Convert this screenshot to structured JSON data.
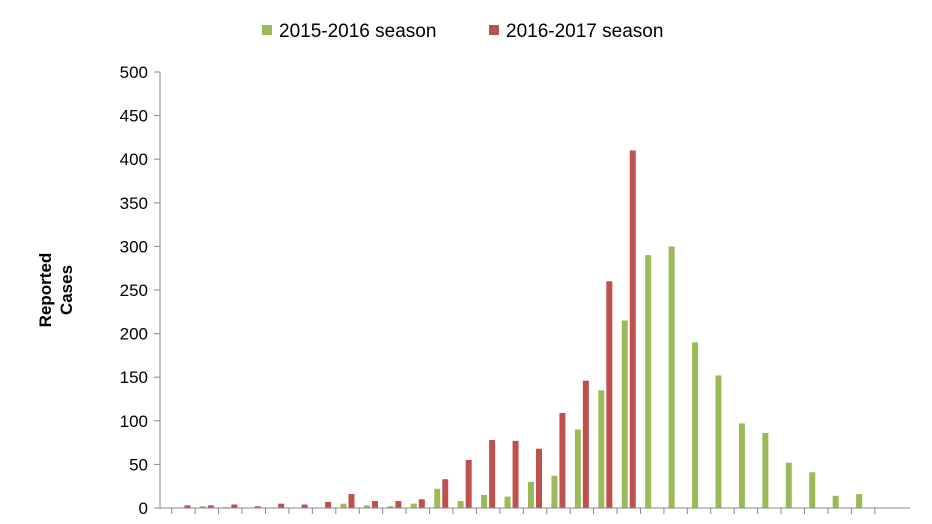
{
  "chart_data": {
    "type": "bar",
    "ylabel_lines": [
      "Reported",
      "Cases"
    ],
    "ylim": [
      0,
      500
    ],
    "yticks": [
      0,
      50,
      100,
      150,
      200,
      250,
      300,
      350,
      400,
      450,
      500
    ],
    "grid": false,
    "legend_position": "top",
    "series": [
      {
        "name": "2015-2016 season",
        "color": "#9bbb59",
        "values": [
          0,
          2,
          1,
          0,
          0,
          0,
          0,
          5,
          3,
          2,
          5,
          22,
          8,
          15,
          13,
          30,
          37,
          90,
          135,
          215,
          290,
          300,
          190,
          152,
          97,
          86,
          52,
          41,
          14,
          16
        ]
      },
      {
        "name": "2016-2017 season",
        "color": "#c0504d",
        "values": [
          3,
          3,
          4,
          2,
          5,
          4,
          7,
          16,
          8,
          8,
          10,
          33,
          55,
          78,
          77,
          68,
          109,
          146,
          260,
          410,
          null,
          null,
          null,
          null,
          null,
          null,
          null,
          null,
          null,
          null
        ]
      }
    ]
  }
}
